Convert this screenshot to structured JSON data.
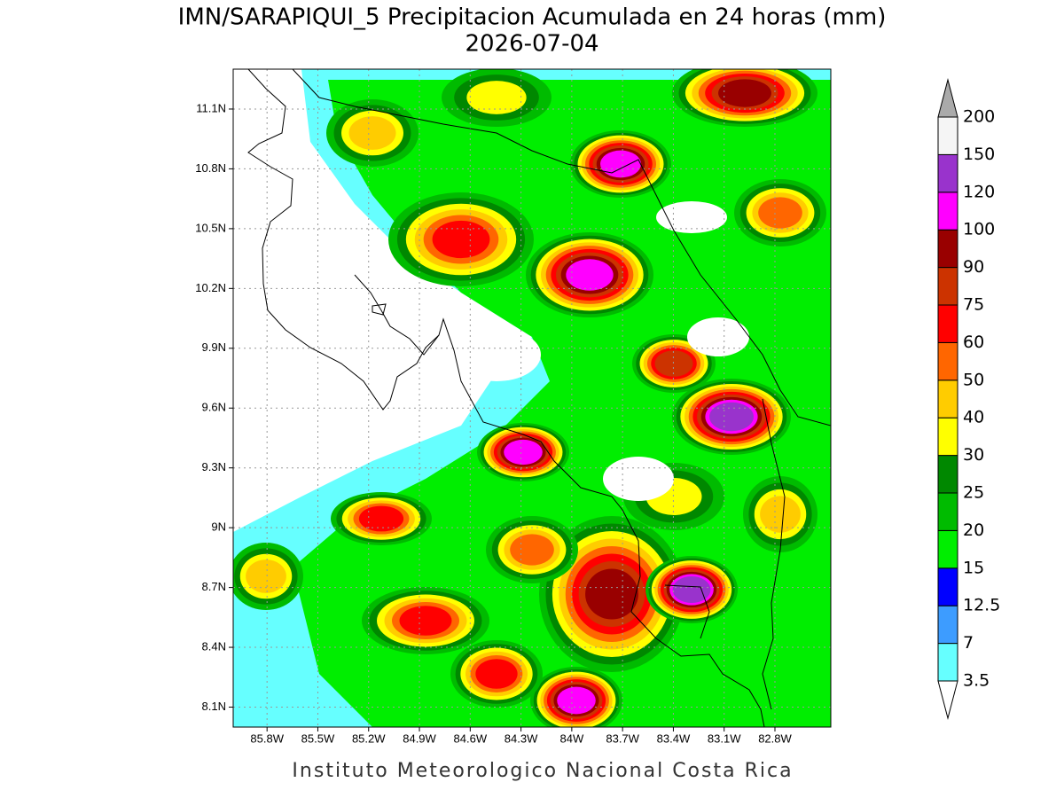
{
  "title": "IMN/SARAPIQUI_5 Precipitacion Acumulada en 24 horas (mm)",
  "subtitle": "2026-07-04",
  "map": {
    "xlim": [
      -86.0,
      -82.47
    ],
    "ylim": [
      8.0,
      11.3
    ],
    "xticks": [
      {
        "value": -85.8,
        "label": "85.8W"
      },
      {
        "value": -85.5,
        "label": "85.5W"
      },
      {
        "value": -85.2,
        "label": "85.2W"
      },
      {
        "value": -84.9,
        "label": "84.9W"
      },
      {
        "value": -84.6,
        "label": "84.6W"
      },
      {
        "value": -84.3,
        "label": "84.3W"
      },
      {
        "value": -84.0,
        "label": "84W"
      },
      {
        "value": -83.7,
        "label": "83.7W"
      },
      {
        "value": -83.4,
        "label": "83.4W"
      },
      {
        "value": -83.1,
        "label": "83.1W"
      },
      {
        "value": -82.8,
        "label": "82.8W"
      }
    ],
    "yticks": [
      {
        "value": 8.1,
        "label": "8.1N"
      },
      {
        "value": 8.4,
        "label": "8.4N"
      },
      {
        "value": 8.7,
        "label": "8.7N"
      },
      {
        "value": 9.0,
        "label": "9N"
      },
      {
        "value": 9.3,
        "label": "9.3N"
      },
      {
        "value": 9.6,
        "label": "9.6N"
      },
      {
        "value": 9.9,
        "label": "9.9N"
      },
      {
        "value": 10.2,
        "label": "10.2N"
      },
      {
        "value": 10.5,
        "label": "10.5N"
      },
      {
        "value": 10.8,
        "label": "10.8N"
      },
      {
        "value": 11.1,
        "label": "11.1N"
      }
    ],
    "grid": true
  },
  "colorbar": {
    "levels": [
      3.5,
      7,
      12.5,
      15,
      20,
      25,
      30,
      40,
      50,
      60,
      75,
      90,
      100,
      120,
      150,
      200
    ],
    "colors": [
      "#66ffff",
      "#3d9cff",
      "#0000ff",
      "#00ee00",
      "#00bb00",
      "#008800",
      "#ffff00",
      "#ffcc00",
      "#ff6600",
      "#ff0000",
      "#cc3300",
      "#990000",
      "#ff00ff",
      "#9933cc",
      "#f5f5f5"
    ],
    "under_color": "#ffffff",
    "over_color": "#aaaaaa"
  },
  "footer": "Instituto Meteorologico Nacional Costa Rica"
}
